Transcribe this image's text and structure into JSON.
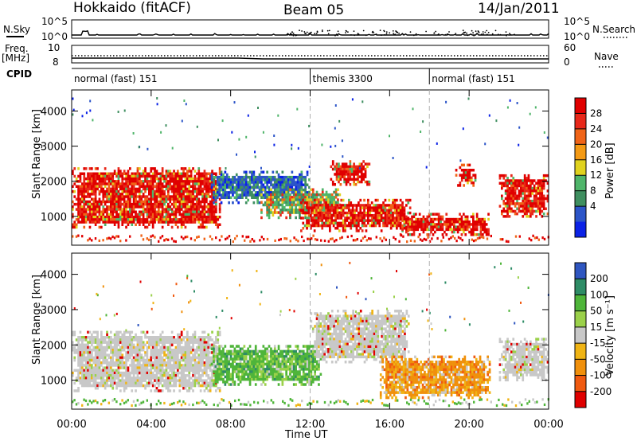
{
  "header": {
    "station": "Hokkaido (fitACF)",
    "beam": "Beam 05",
    "date": "14/Jan/2011"
  },
  "top_panels": {
    "nsky_label": "N.Sky",
    "nsky_ticks": [
      "10^5",
      "10^0"
    ],
    "nsky_right_ticks": [
      "10^5",
      "10^0"
    ],
    "nsearch_label": "N.Search",
    "freq_label": "Freq.",
    "freq_unit": "[MHz]",
    "freq_ticks": [
      "10",
      "8"
    ],
    "nave_ticks": [
      "60",
      "0"
    ],
    "nave_label": "Nave",
    "cpid_label": "CPID",
    "cpid_segments": [
      {
        "label": "normal (fast) 151",
        "start_hour": 0,
        "end_hour": 12
      },
      {
        "label": "themis 3300",
        "start_hour": 12,
        "end_hour": 18
      },
      {
        "label": "normal (fast) 151",
        "start_hour": 18,
        "end_hour": 24
      }
    ]
  },
  "colors": {
    "power": [
      "#0b22e6",
      "#2c55c8",
      "#3f8f60",
      "#4fb56a",
      "#e0d21e",
      "#f49a14",
      "#f06418",
      "#e8281a",
      "#e00000"
    ],
    "velocity": [
      "#e00000",
      "#f05a10",
      "#f0900c",
      "#f0b414",
      "#c8c8c8",
      "#9bd14a",
      "#4fb53a",
      "#2e8c66",
      "#2f56c0"
    ]
  },
  "chart_data": [
    {
      "type": "heatmap",
      "ylabel": "Slant Range [km]",
      "ylim": [
        180,
        4600
      ],
      "yticks": [
        1000,
        2000,
        3000,
        4000
      ],
      "xlim": [
        0,
        24
      ],
      "xtick_hours": [
        0,
        4,
        8,
        12,
        16,
        20,
        24
      ],
      "colorbar_label": "Power [dB]",
      "colorbar_ticks": [
        "28",
        "24",
        "20",
        "16",
        "12",
        "8",
        "4"
      ],
      "regions": [
        {
          "hour_start": 0.0,
          "hour_end": 7.5,
          "range_low": 700,
          "range_high": 2400,
          "level": "high"
        },
        {
          "hour_start": 7.0,
          "hour_end": 12.0,
          "range_low": 1400,
          "range_high": 2300,
          "level": "low"
        },
        {
          "hour_start": 9.5,
          "hour_end": 13.5,
          "range_low": 1000,
          "range_high": 1800,
          "level": "medium"
        },
        {
          "hour_start": 11.5,
          "hour_end": 17.0,
          "range_low": 600,
          "range_high": 1500,
          "level": "high"
        },
        {
          "hour_start": 13.0,
          "hour_end": 15.0,
          "range_low": 1900,
          "range_high": 2600,
          "level": "high"
        },
        {
          "hour_start": 16.5,
          "hour_end": 21.0,
          "range_low": 500,
          "range_high": 1100,
          "level": "high"
        },
        {
          "hour_start": 19.3,
          "hour_end": 20.3,
          "range_low": 1900,
          "range_high": 2500,
          "level": "high"
        },
        {
          "hour_start": 21.5,
          "hour_end": 24.0,
          "range_low": 1000,
          "range_high": 2200,
          "level": "high"
        }
      ]
    },
    {
      "type": "heatmap",
      "ylabel": "Slant Range [km]",
      "ylim": [
        180,
        4600
      ],
      "yticks": [
        1000,
        2000,
        3000,
        4000
      ],
      "xlim": [
        0,
        24
      ],
      "xtick_hours": [
        0,
        4,
        8,
        12,
        16,
        20,
        24
      ],
      "xtick_labels": [
        "00:00",
        "04:00",
        "08:00",
        "12:00",
        "16:00",
        "20:00",
        "00:00"
      ],
      "xlabel": "Time UT",
      "colorbar_label": "Velocity [m s⁻¹]",
      "colorbar_ticks": [
        "200",
        "100",
        "50",
        "15",
        "-15",
        "-50",
        "-100",
        "-200"
      ],
      "regions": [
        {
          "hour_start": 0.0,
          "hour_end": 7.5,
          "range_low": 700,
          "range_high": 2400,
          "velocity": "near zero"
        },
        {
          "hour_start": 7.0,
          "hour_end": 12.5,
          "range_low": 900,
          "range_high": 2000,
          "velocity": "15 to 100"
        },
        {
          "hour_start": 12.0,
          "hour_end": 17.0,
          "range_low": 1500,
          "range_high": 3000,
          "velocity": "near zero"
        },
        {
          "hour_start": 15.5,
          "hour_end": 21.0,
          "range_low": 500,
          "range_high": 1700,
          "velocity": "-50 to -100"
        },
        {
          "hour_start": 21.5,
          "hour_end": 24.0,
          "range_low": 1000,
          "range_high": 2200,
          "velocity": "near zero"
        }
      ]
    }
  ]
}
